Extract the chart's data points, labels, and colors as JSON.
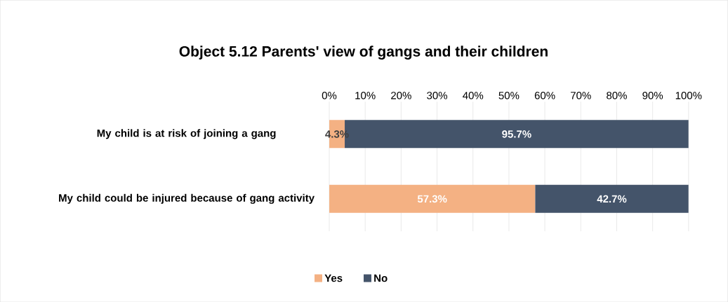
{
  "chart_data": {
    "type": "bar",
    "orientation": "horizontal",
    "stacked": true,
    "title": "Object 5.12 Parents' view of gangs and their children",
    "categories": [
      "My child is at risk of joining a gang",
      "My child could be injured because of gang activity"
    ],
    "series": [
      {
        "name": "Yes",
        "color": "#f4b183",
        "values": [
          4.3,
          57.3
        ],
        "value_labels": [
          "4.3%",
          "57.3%"
        ]
      },
      {
        "name": "No",
        "color": "#44546a",
        "values": [
          95.7,
          42.7
        ],
        "value_labels": [
          "95.7%",
          "42.7%"
        ]
      }
    ],
    "xlim": [
      0,
      100
    ],
    "xticks": [
      {
        "value": 0,
        "label": "0%"
      },
      {
        "value": 10,
        "label": "10%"
      },
      {
        "value": 20,
        "label": "20%"
      },
      {
        "value": 30,
        "label": "30%"
      },
      {
        "value": 40,
        "label": "40%"
      },
      {
        "value": 50,
        "label": "50%"
      },
      {
        "value": 60,
        "label": "60%"
      },
      {
        "value": 70,
        "label": "70%"
      },
      {
        "value": 80,
        "label": "80%"
      },
      {
        "value": 90,
        "label": "90%"
      },
      {
        "value": 100,
        "label": "100%"
      }
    ],
    "grid": "x",
    "legend": "bottom"
  }
}
